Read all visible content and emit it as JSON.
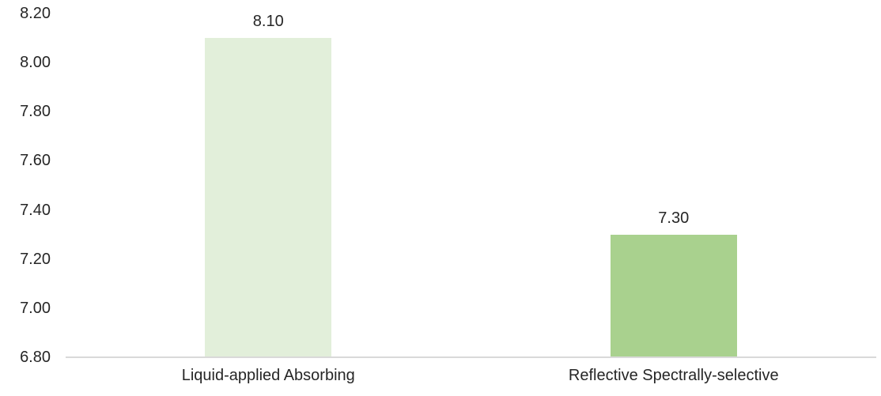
{
  "chart_data": {
    "type": "bar",
    "title": "",
    "xlabel": "",
    "ylabel": "",
    "categories": [
      "Liquid-applied Absorbing",
      "Reflective Spectrally-selective"
    ],
    "values": [
      8.1,
      7.3
    ],
    "value_labels": [
      "8.10",
      "7.30"
    ],
    "bar_colors": [
      "#e2efda",
      "#a9d18e"
    ],
    "ylim": [
      6.8,
      8.2
    ],
    "ytick_step": 0.2,
    "ytick_labels": [
      "6.80",
      "7.00",
      "7.20",
      "7.40",
      "7.60",
      "7.80",
      "8.00",
      "8.20"
    ],
    "grid": "off",
    "legend": "none",
    "axis_line_color": "#d9d9d9",
    "text_color": "#262626",
    "background_color": "#ffffff"
  }
}
